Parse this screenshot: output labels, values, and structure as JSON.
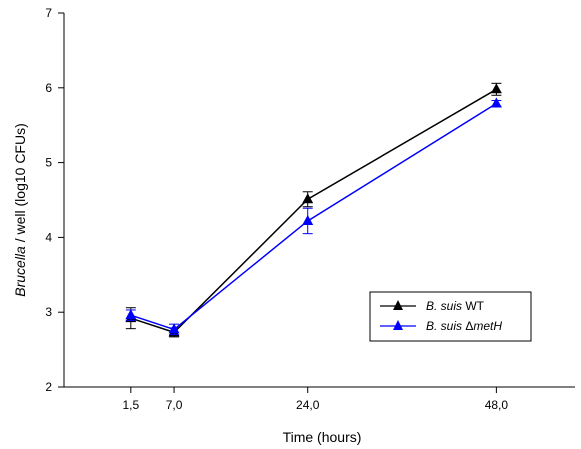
{
  "chart_data": {
    "type": "line",
    "xlabel": "Time (hours)",
    "ylabel_italic": "Brucella",
    "ylabel_rest": " / well (log10 CFUs)",
    "x": [
      1.5,
      7.0,
      24.0,
      48.0
    ],
    "x_tick_labels": [
      "1,5",
      "7,0",
      "24,0",
      "48,0"
    ],
    "xlim": [
      -7,
      58
    ],
    "ylim": [
      2,
      7
    ],
    "y_ticks": [
      2,
      3,
      4,
      5,
      6,
      7
    ],
    "y_tick_labels": [
      "2",
      "3",
      "4",
      "5",
      "6",
      "7"
    ],
    "legend_position": "lower-right",
    "series": [
      {
        "name_italic": "B. suis",
        "name_rest": " WT",
        "color": "#000000",
        "marker": "triangle",
        "values": [
          2.92,
          2.73,
          4.51,
          5.98
        ],
        "errors": [
          0.14,
          0.06,
          0.1,
          0.08
        ]
      },
      {
        "name_italic": "B. suis",
        "name_rest": " Δ",
        "name_italic2": "metH",
        "color": "#0000ff",
        "marker": "triangle",
        "values": [
          2.96,
          2.77,
          4.22,
          5.79
        ],
        "errors": [
          0.07,
          0.07,
          0.17,
          0.04
        ]
      }
    ]
  }
}
